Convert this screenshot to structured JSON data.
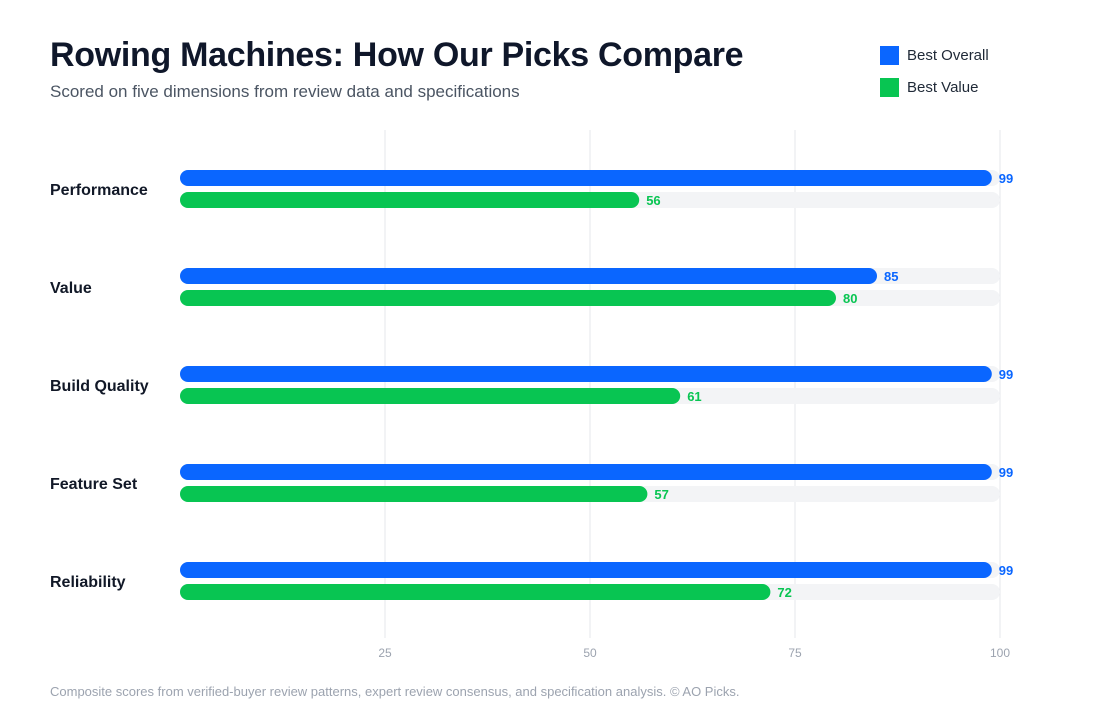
{
  "title": "Rowing Machines: How Our Picks Compare",
  "subtitle": "Scored on five dimensions from review data and specifications",
  "legend": [
    {
      "name": "Best Overall",
      "color": "#0a66ff"
    },
    {
      "name": "Best Value",
      "color": "#08c552"
    }
  ],
  "footnote": "Composite scores from verified-buyer review patterns, expert review consensus, and specification analysis. © AO Picks.",
  "chart_data": {
    "type": "bar",
    "orientation": "horizontal",
    "categories": [
      "Performance",
      "Value",
      "Build Quality",
      "Feature Set",
      "Reliability"
    ],
    "series": [
      {
        "name": "Best Overall",
        "color": "#0a66ff",
        "values": [
          99,
          85,
          99,
          99,
          99
        ]
      },
      {
        "name": "Best Value",
        "color": "#08c552",
        "values": [
          56,
          80,
          61,
          57,
          72
        ]
      }
    ],
    "xlim": [
      0,
      100
    ],
    "xticks": [
      25,
      50,
      75,
      100
    ],
    "grid": true,
    "legend_position": "top-right",
    "track_color": "#f3f4f6"
  }
}
